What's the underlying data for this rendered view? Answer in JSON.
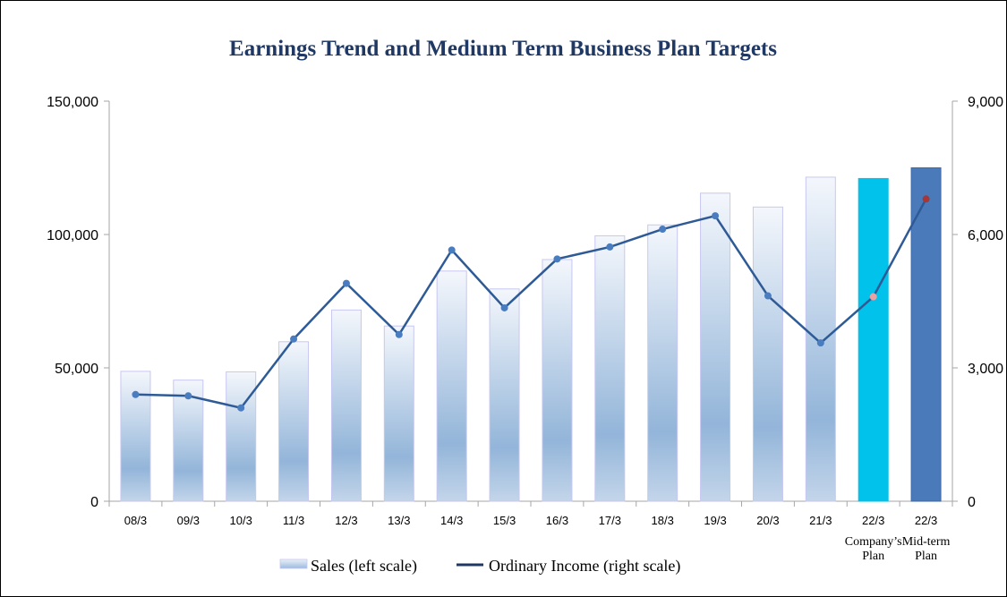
{
  "chart_data": {
    "type": "bar",
    "title": "Earnings Trend  and Medium Term Business Plan Targets",
    "categories": [
      "08/3",
      "09/3",
      "10/3",
      "11/3",
      "12/3",
      "13/3",
      "14/3",
      "15/3",
      "16/3",
      "17/3",
      "18/3",
      "19/3",
      "20/3",
      "21/3",
      "22/3",
      "22/3"
    ],
    "category_notes": [
      "",
      "",
      "",
      "",
      "",
      "",
      "",
      "",
      "",
      "",
      "",
      "",
      "",
      "",
      "Company’s Plan",
      "Mid-term Plan"
    ],
    "series": [
      {
        "name": "Sales (left scale)",
        "axis": "left",
        "type": "bar",
        "values": [
          48700,
          45400,
          48500,
          59800,
          71700,
          65700,
          86300,
          79600,
          90600,
          99500,
          103600,
          115500,
          110300,
          121500,
          121000,
          125000
        ]
      },
      {
        "name": "Ordinary Income (right scale)",
        "axis": "right",
        "type": "line",
        "values": [
          2400,
          2370,
          2100,
          3650,
          4900,
          3750,
          5650,
          4350,
          5450,
          5720,
          6120,
          6420,
          4620,
          3560,
          4600,
          6800
        ]
      }
    ],
    "left_axis": {
      "ylim": [
        0,
        150000
      ],
      "ticks": [
        "0",
        "50,000",
        "100,000",
        "150,000"
      ]
    },
    "right_axis": {
      "ylim": [
        0,
        9000
      ],
      "ticks": [
        "0",
        "3,000",
        "6,000",
        "9,000"
      ]
    },
    "legend_position": "bottom-center",
    "colors": {
      "title": "#1f3864",
      "bar_top": "#eef3fa",
      "bar_bottom": "#8fb1d6",
      "bar_border": "#c7c7f2",
      "company_plan_bar": "#00c2ea",
      "midterm_plan_bar": "#4a7ab9",
      "line": "#2e5a96",
      "marker": "#4a7cc0",
      "company_plan_marker": "#e8a4a4",
      "midterm_plan_marker": "#a73737"
    }
  }
}
